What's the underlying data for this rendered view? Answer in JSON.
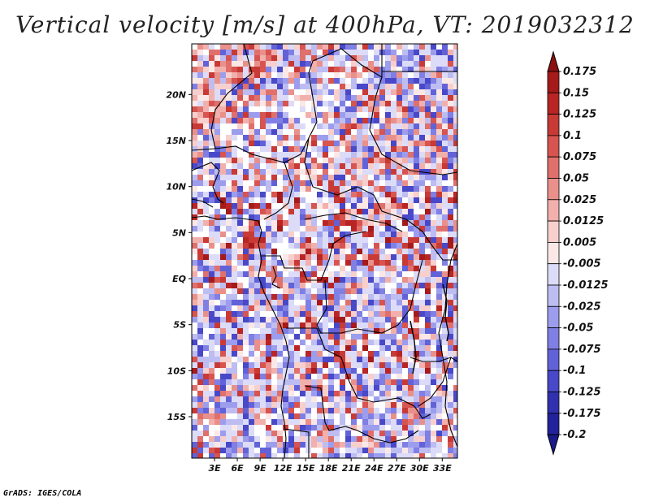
{
  "title": "Vertical velocity [m/s] at 400hPa, VT: 2019032312",
  "credit": "GrADS: IGES/COLA",
  "map": {
    "lon_range": [
      0,
      35
    ],
    "lat_range": [
      -19.5,
      25.5
    ],
    "lat_ticks": [
      {
        "value": 20,
        "label": "20N"
      },
      {
        "value": 15,
        "label": "15N"
      },
      {
        "value": 10,
        "label": "10N"
      },
      {
        "value": 5,
        "label": "5N"
      },
      {
        "value": 0,
        "label": "EQ"
      },
      {
        "value": -5,
        "label": "5S"
      },
      {
        "value": -10,
        "label": "10S"
      },
      {
        "value": -15,
        "label": "15S"
      }
    ],
    "lon_ticks": [
      {
        "value": 3,
        "label": "3E"
      },
      {
        "value": 6,
        "label": "6E"
      },
      {
        "value": 9,
        "label": "9E"
      },
      {
        "value": 12,
        "label": "12E"
      },
      {
        "value": 15,
        "label": "15E"
      },
      {
        "value": 18,
        "label": "18E"
      },
      {
        "value": 21,
        "label": "21E"
      },
      {
        "value": 24,
        "label": "24E"
      },
      {
        "value": 27,
        "label": "27E"
      },
      {
        "value": 30,
        "label": "30E"
      },
      {
        "value": 33,
        "label": "33E"
      }
    ]
  },
  "colorbar": {
    "levels": [
      {
        "label": "0.175",
        "color": "#a51a1a"
      },
      {
        "label": "0.15",
        "color": "#b92525"
      },
      {
        "label": "0.125",
        "color": "#c83a36"
      },
      {
        "label": "0.1",
        "color": "#d75450"
      },
      {
        "label": "0.075",
        "color": "#e0706b"
      },
      {
        "label": "0.05",
        "color": "#ea908b"
      },
      {
        "label": "0.025",
        "color": "#f2b0ac"
      },
      {
        "label": "0.0125",
        "color": "#f7cfcc"
      },
      {
        "label": "0.005",
        "color": "#fbe8e6"
      },
      {
        "label": "-0.005",
        "color": "#ffffff"
      },
      {
        "label": "-0.0125",
        "color": "#dcdcf8"
      },
      {
        "label": "-0.025",
        "color": "#bdbdf2"
      },
      {
        "label": "-0.05",
        "color": "#9d9ded"
      },
      {
        "label": "-0.075",
        "color": "#7f7fe4"
      },
      {
        "label": "-0.1",
        "color": "#6262d8"
      },
      {
        "label": "-0.125",
        "color": "#4848c8"
      },
      {
        "label": "-0.175",
        "color": "#3131b0"
      },
      {
        "label": "-0.2",
        "color": "#22229a"
      }
    ],
    "top_cap_color": "#8b1010",
    "bottom_cap_color": "#1a1a8a"
  }
}
